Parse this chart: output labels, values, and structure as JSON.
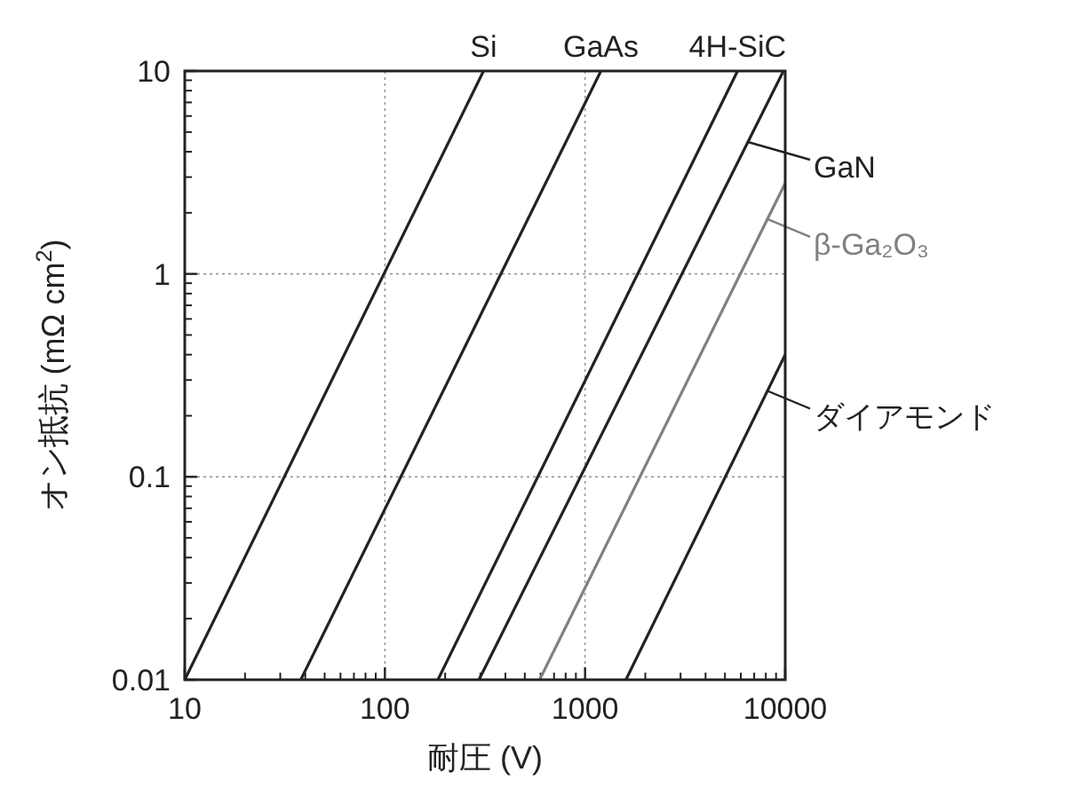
{
  "chart_data": {
    "type": "line",
    "xlabel": "耐圧 (V)",
    "ylabel": "オン抵抗 (mΩ cm$^{2}$)",
    "log": "xy",
    "grid": true,
    "legend": "right",
    "xlim": [
      10,
      10000
    ],
    "ylim": [
      0.01,
      10
    ],
    "xticks": [
      10,
      100,
      1000,
      10000
    ],
    "yticks": [
      0.01,
      0.1,
      1,
      10
    ],
    "series": [
      {
        "name": "Si",
        "color": "#222222",
        "x": [
          10,
          311
        ],
        "values": [
          0.01,
          10
        ]
      },
      {
        "name": "GaAs",
        "color": "#222222",
        "x": [
          38,
          1200
        ],
        "values": [
          0.01,
          10
        ]
      },
      {
        "name": "4H-SiC",
        "color": "#222222",
        "x": [
          184,
          5780
        ],
        "values": [
          0.01,
          10
        ]
      },
      {
        "name": "GaN",
        "color": "#222222",
        "x": [
          295,
          9800
        ],
        "values": [
          0.01,
          10
        ]
      },
      {
        "name": "β-Ga₂O₃",
        "color": "#808080",
        "x": [
          593,
          10000
        ],
        "values": [
          0.01,
          2.8
        ]
      },
      {
        "name": "ダイアモンド",
        "color": "#222222",
        "x": [
          1600,
          10000
        ],
        "values": [
          0.01,
          0.4
        ]
      }
    ]
  }
}
